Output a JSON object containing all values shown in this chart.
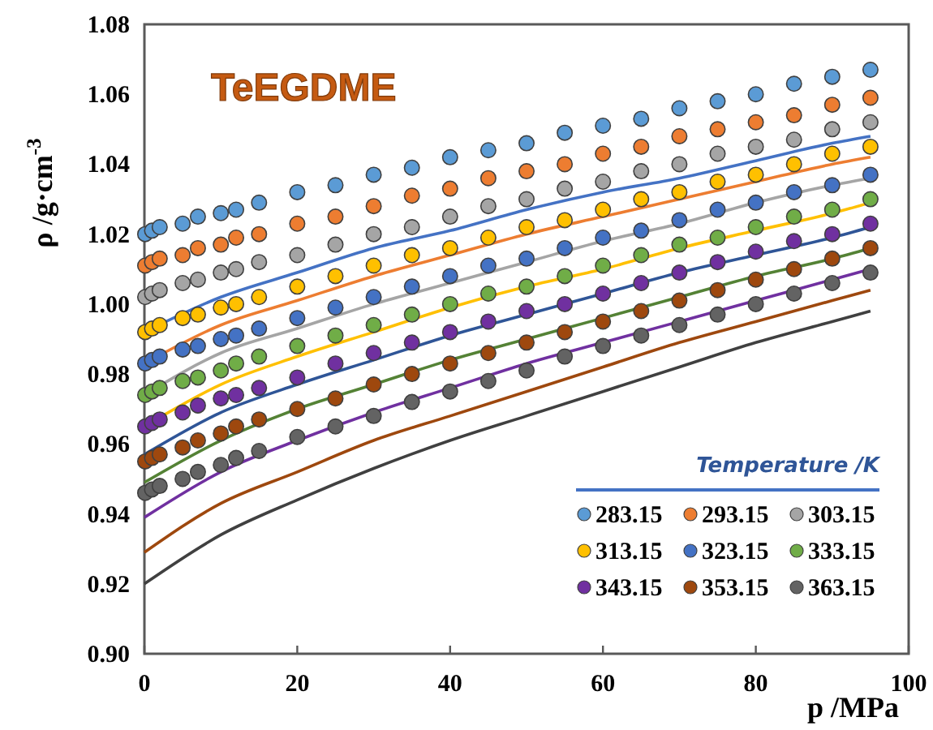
{
  "chart_data": {
    "type": "scatter",
    "title": "TeEGDME",
    "xlabel": "p /MPa",
    "ylabel": "ρ /g·cm$^{-3}$",
    "legend_title": "Temperature /K",
    "legend": "bottom right",
    "marker": "circle",
    "line_style": "solid",
    "xlim": [
      0,
      100
    ],
    "xticks": [
      0,
      20,
      40,
      60,
      80,
      100
    ],
    "ylim": [
      0.9,
      1.08
    ],
    "yticks": [
      {
        "value": 0.9,
        "label": "0.90"
      },
      0.92,
      0.94,
      0.96,
      0.98,
      {
        "value": 1.0,
        "label": "1.00"
      },
      1.02,
      1.04,
      1.06,
      1.08
    ],
    "x": [
      0.1,
      1,
      2,
      5,
      7,
      10,
      12,
      15,
      20,
      25,
      30,
      35,
      40,
      45,
      50,
      55,
      60,
      65,
      70,
      75,
      80,
      85,
      90,
      95
    ],
    "series": [
      {
        "name": "283.15",
        "color": "#5b9bd5",
        "values": [
          1.02,
          1.021,
          1.022,
          1.023,
          1.025,
          1.026,
          1.027,
          1.029,
          1.032,
          1.034,
          1.037,
          1.039,
          1.042,
          1.044,
          1.046,
          1.049,
          1.051,
          1.053,
          1.056,
          1.058,
          1.06,
          1.063,
          1.065,
          1.067
        ]
      },
      {
        "name": "293.15",
        "color": "#ed7d31",
        "values": [
          1.011,
          1.012,
          1.013,
          1.014,
          1.016,
          1.017,
          1.019,
          1.02,
          1.023,
          1.025,
          1.028,
          1.031,
          1.033,
          1.036,
          1.038,
          1.04,
          1.043,
          1.045,
          1.048,
          1.05,
          1.052,
          1.054,
          1.057,
          1.059
        ]
      },
      {
        "name": "303.15",
        "color": "#a5a5a5",
        "values": [
          1.002,
          1.003,
          1.004,
          1.006,
          1.007,
          1.009,
          1.01,
          1.012,
          1.014,
          1.017,
          1.02,
          1.022,
          1.025,
          1.028,
          1.03,
          1.033,
          1.035,
          1.038,
          1.04,
          1.043,
          1.045,
          1.047,
          1.05,
          1.052
        ]
      },
      {
        "name": "313.15",
        "color": "#ffc000",
        "values": [
          0.992,
          0.993,
          0.994,
          0.996,
          0.997,
          0.999,
          1.0,
          1.002,
          1.005,
          1.008,
          1.011,
          1.014,
          1.016,
          1.019,
          1.022,
          1.024,
          1.027,
          1.03,
          1.032,
          1.035,
          1.037,
          1.04,
          1.043,
          1.045
        ]
      },
      {
        "name": "323.15",
        "color": "#4472c4",
        "values": [
          0.983,
          0.984,
          0.985,
          0.987,
          0.988,
          0.99,
          0.991,
          0.993,
          0.996,
          0.999,
          1.002,
          1.005,
          1.008,
          1.011,
          1.013,
          1.016,
          1.019,
          1.021,
          1.024,
          1.027,
          1.029,
          1.032,
          1.034,
          1.037
        ]
      },
      {
        "name": "333.15",
        "color": "#70ad47",
        "values": [
          0.974,
          0.975,
          0.976,
          0.978,
          0.979,
          0.981,
          0.983,
          0.985,
          0.988,
          0.991,
          0.994,
          0.997,
          1.0,
          1.003,
          1.005,
          1.008,
          1.011,
          1.014,
          1.017,
          1.019,
          1.022,
          1.025,
          1.027,
          1.03
        ]
      },
      {
        "name": "343.15",
        "color": "#7030a0",
        "values": [
          0.965,
          0.966,
          0.967,
          0.969,
          0.971,
          0.973,
          0.974,
          0.976,
          0.979,
          0.983,
          0.986,
          0.989,
          0.992,
          0.995,
          0.998,
          1.0,
          1.003,
          1.006,
          1.009,
          1.012,
          1.015,
          1.018,
          1.02,
          1.023
        ]
      },
      {
        "name": "353.15",
        "color": "#9e480e",
        "values": [
          0.955,
          0.956,
          0.957,
          0.959,
          0.961,
          0.963,
          0.965,
          0.967,
          0.97,
          0.973,
          0.977,
          0.98,
          0.983,
          0.986,
          0.989,
          0.992,
          0.995,
          0.998,
          1.001,
          1.004,
          1.007,
          1.01,
          1.013,
          1.016
        ]
      },
      {
        "name": "363.15",
        "color": "#636363",
        "values": [
          0.946,
          0.947,
          0.948,
          0.95,
          0.952,
          0.954,
          0.956,
          0.958,
          0.962,
          0.965,
          0.968,
          0.972,
          0.975,
          0.978,
          0.981,
          0.985,
          0.988,
          0.991,
          0.994,
          0.997,
          1.0,
          1.003,
          1.006,
          1.009
        ]
      },
      {
        "type": "line",
        "marker": "none",
        "color": "#4472c4",
        "x": [
          0,
          10,
          20,
          30,
          40,
          50,
          60,
          70,
          80,
          90,
          95
        ],
        "values": [
          0.992,
          1.002,
          1.009,
          1.016,
          1.021,
          1.027,
          1.032,
          1.036,
          1.041,
          1.046,
          1.048
        ]
      },
      {
        "type": "line",
        "marker": "none",
        "color": "#ed7d31",
        "x": [
          0,
          10,
          20,
          30,
          40,
          50,
          60,
          70,
          80,
          90,
          95
        ],
        "values": [
          0.983,
          0.994,
          1.001,
          1.008,
          1.014,
          1.02,
          1.025,
          1.03,
          1.035,
          1.04,
          1.042
        ]
      },
      {
        "type": "line",
        "marker": "none",
        "color": "#a5a5a5",
        "x": [
          0,
          10,
          20,
          30,
          40,
          50,
          60,
          70,
          80,
          90,
          95
        ],
        "values": [
          0.974,
          0.986,
          0.993,
          1.0,
          1.006,
          1.012,
          1.018,
          1.023,
          1.029,
          1.034,
          1.036
        ]
      },
      {
        "type": "line",
        "marker": "none",
        "color": "#ffc000",
        "x": [
          0,
          10,
          20,
          30,
          40,
          50,
          60,
          70,
          80,
          90,
          95
        ],
        "values": [
          0.965,
          0.977,
          0.985,
          0.992,
          0.999,
          1.005,
          1.01,
          1.016,
          1.021,
          1.026,
          1.029
        ]
      },
      {
        "type": "line",
        "marker": "none",
        "color": "#2f5597",
        "x": [
          0,
          10,
          20,
          30,
          40,
          50,
          60,
          70,
          80,
          90,
          95
        ],
        "values": [
          0.957,
          0.969,
          0.977,
          0.984,
          0.991,
          0.997,
          1.003,
          1.009,
          1.014,
          1.019,
          1.022
        ]
      },
      {
        "type": "line",
        "marker": "none",
        "color": "#548235",
        "x": [
          0,
          10,
          20,
          30,
          40,
          50,
          60,
          70,
          80,
          90,
          95
        ],
        "values": [
          0.949,
          0.961,
          0.97,
          0.977,
          0.984,
          0.99,
          0.996,
          1.002,
          1.008,
          1.013,
          1.016
        ]
      },
      {
        "type": "line",
        "marker": "none",
        "color": "#7030a0",
        "x": [
          0,
          10,
          20,
          30,
          40,
          50,
          60,
          70,
          80,
          90,
          95
        ],
        "values": [
          0.939,
          0.952,
          0.961,
          0.969,
          0.976,
          0.983,
          0.989,
          0.995,
          1.001,
          1.007,
          1.01
        ]
      },
      {
        "type": "line",
        "marker": "none",
        "color": "#9e480e",
        "x": [
          0,
          10,
          20,
          30,
          40,
          50,
          60,
          70,
          80,
          90,
          95
        ],
        "values": [
          0.929,
          0.943,
          0.952,
          0.961,
          0.968,
          0.975,
          0.982,
          0.989,
          0.995,
          1.001,
          1.004
        ]
      },
      {
        "type": "line",
        "marker": "none",
        "color": "#404040",
        "x": [
          0,
          10,
          20,
          30,
          40,
          50,
          60,
          70,
          80,
          90,
          95
        ],
        "values": [
          0.92,
          0.934,
          0.944,
          0.953,
          0.961,
          0.968,
          0.975,
          0.982,
          0.989,
          0.995,
          0.998
        ]
      }
    ]
  }
}
